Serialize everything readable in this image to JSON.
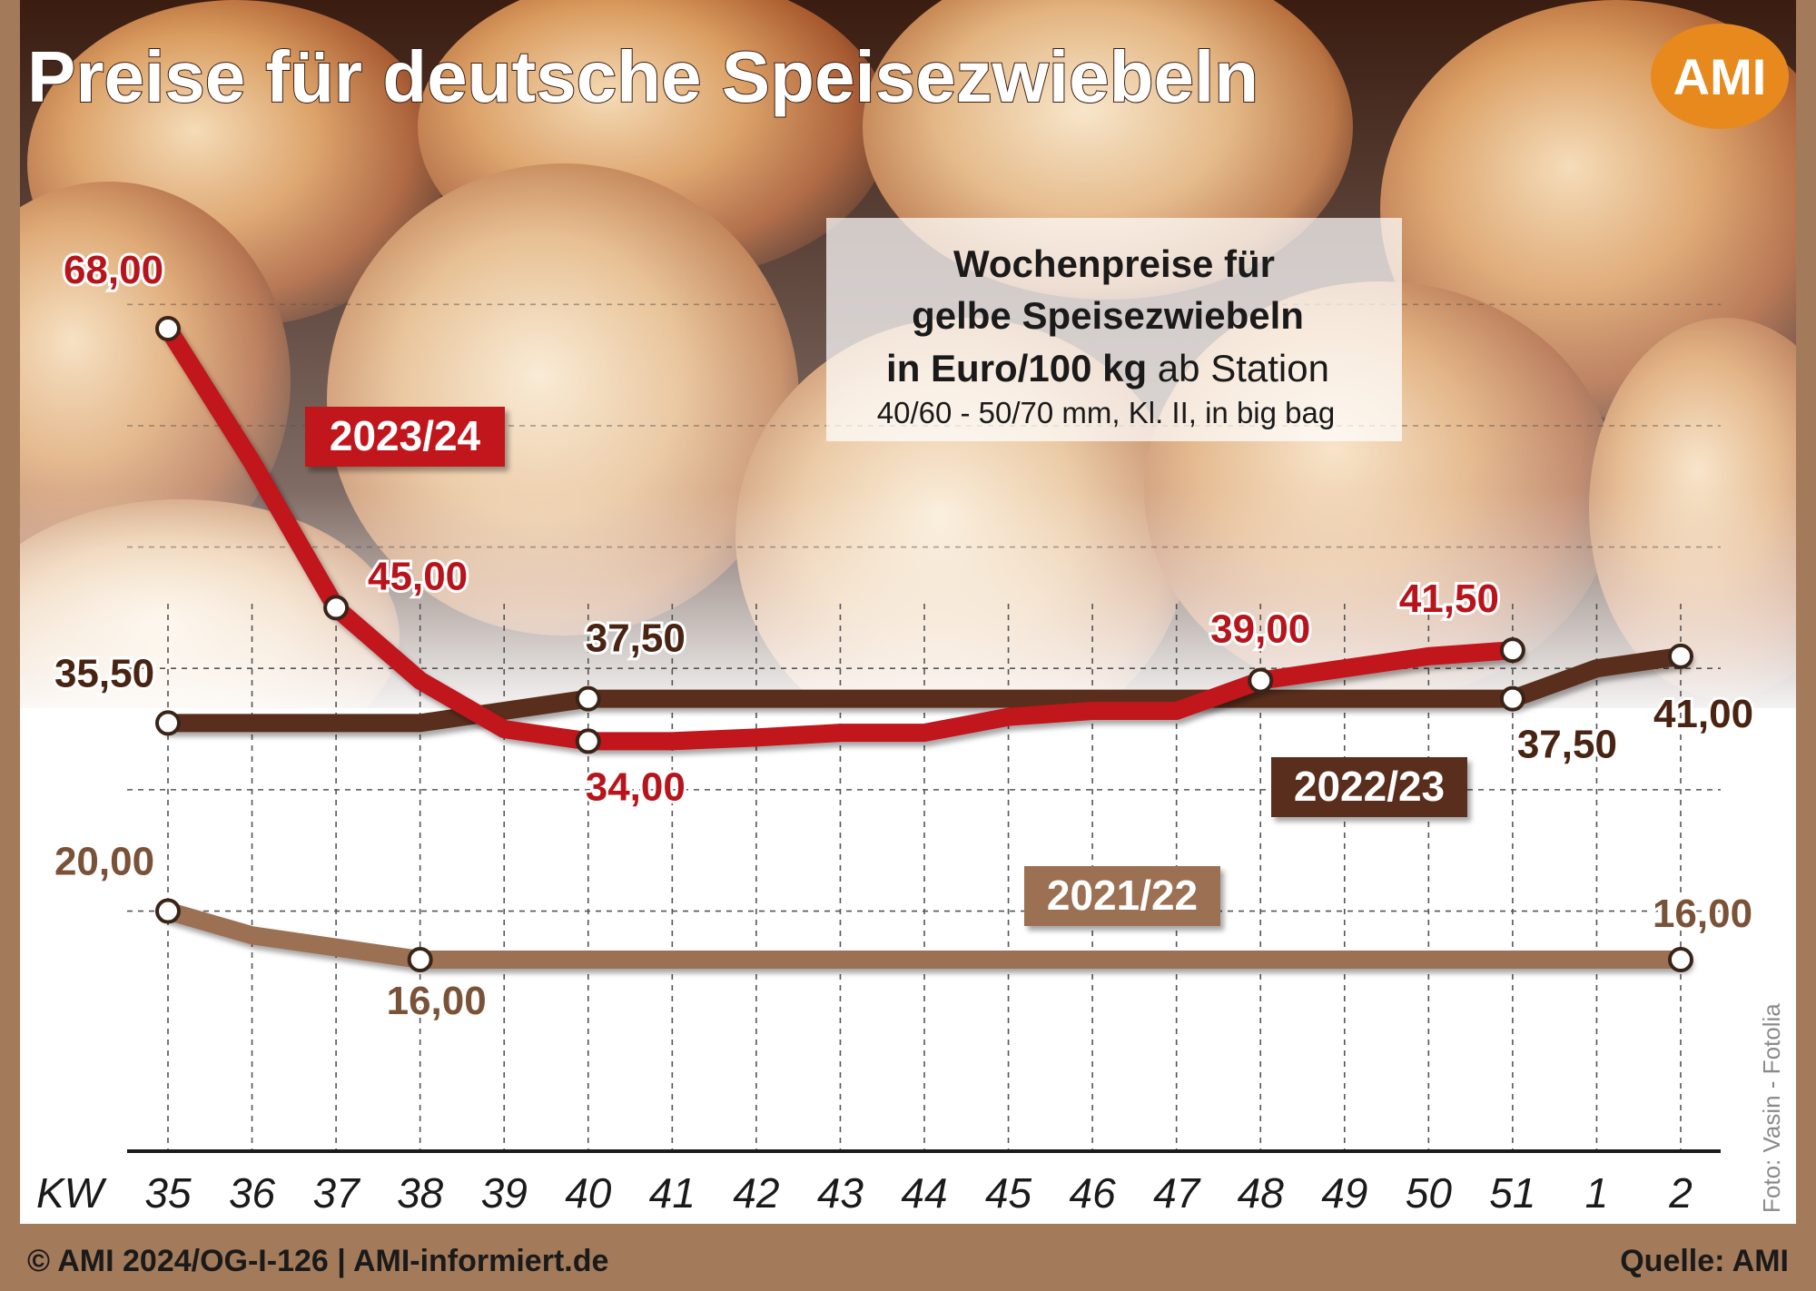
{
  "title": "Preise für deutsche Speisezwiebeln",
  "logo_text": "AMI",
  "subtitle": {
    "line1": "Wochenpreise für",
    "line2": "gelbe Speisezwiebeln",
    "line3_bold": "in Euro/100 kg",
    "line3_normal": " ab Station",
    "line4": "40/60 - 50/70 mm, Kl. II, in big bag"
  },
  "footer": {
    "left": "© AMI 2024/OG-I-126 | AMI-informiert.de",
    "right": "Quelle: AMI"
  },
  "photo_credit": "Foto: Vasin - Fotolia",
  "colors": {
    "frame": "#a37a5a",
    "series_2023_24": "#c0121a",
    "series_2022_23": "#5a2e1a",
    "series_2021_22": "#9c7052",
    "logo": "#e8891e",
    "label_red": "#b8141c",
    "label_dark": "#4a2412",
    "label_light": "#7a5238"
  },
  "chart_data": {
    "type": "line",
    "xlabel": "KW",
    "ylabel": "",
    "ylim": [
      10,
      70
    ],
    "grid": true,
    "categories": [
      "35",
      "36",
      "37",
      "38",
      "39",
      "40",
      "41",
      "42",
      "43",
      "44",
      "45",
      "46",
      "47",
      "48",
      "49",
      "50",
      "51",
      "1",
      "2"
    ],
    "series": [
      {
        "name": "2023/24",
        "values": [
          68.0,
          57.0,
          45.0,
          39.0,
          35.0,
          34.0,
          34.0,
          34.3,
          34.7,
          34.7,
          36.0,
          36.5,
          36.5,
          39.0,
          40.0,
          41.0,
          41.5,
          null,
          null
        ],
        "markers": [
          {
            "x": "35",
            "y": 68.0
          },
          {
            "x": "37",
            "y": 45.0
          },
          {
            "x": "40",
            "y": 34.0
          },
          {
            "x": "48",
            "y": 39.0
          },
          {
            "x": "51",
            "y": 41.5
          }
        ],
        "labels": [
          {
            "x": "35",
            "text": "68,00"
          },
          {
            "x": "37",
            "text": "45,00"
          },
          {
            "x": "40",
            "text": "34,00"
          },
          {
            "x": "48",
            "text": "39,00"
          },
          {
            "x": "51",
            "text": "41,50"
          }
        ]
      },
      {
        "name": "2022/23",
        "values": [
          35.5,
          35.5,
          35.5,
          35.5,
          36.5,
          37.5,
          37.5,
          37.5,
          37.5,
          37.5,
          37.5,
          37.5,
          37.5,
          37.5,
          37.5,
          37.5,
          37.5,
          40.0,
          41.0
        ],
        "markers": [
          {
            "x": "35",
            "y": 35.5
          },
          {
            "x": "40",
            "y": 37.5
          },
          {
            "x": "51",
            "y": 37.5
          },
          {
            "x": "2",
            "y": 41.0
          }
        ],
        "labels": [
          {
            "x": "35",
            "text": "35,50"
          },
          {
            "x": "40",
            "text": "37,50"
          },
          {
            "x": "51",
            "text": "37,50"
          },
          {
            "x": "2",
            "text": "41,00"
          }
        ]
      },
      {
        "name": "2021/22",
        "values": [
          20.0,
          18.0,
          17.0,
          16.0,
          16.0,
          16.0,
          16.0,
          16.0,
          16.0,
          16.0,
          16.0,
          16.0,
          16.0,
          16.0,
          16.0,
          16.0,
          16.0,
          16.0,
          16.0
        ],
        "markers": [
          {
            "x": "35",
            "y": 20.0
          },
          {
            "x": "38",
            "y": 16.0
          },
          {
            "x": "2",
            "y": 16.0
          }
        ],
        "labels": [
          {
            "x": "35",
            "text": "20,00"
          },
          {
            "x": "38",
            "text": "16,00"
          },
          {
            "x": "2",
            "text": "16,00"
          }
        ]
      }
    ]
  }
}
